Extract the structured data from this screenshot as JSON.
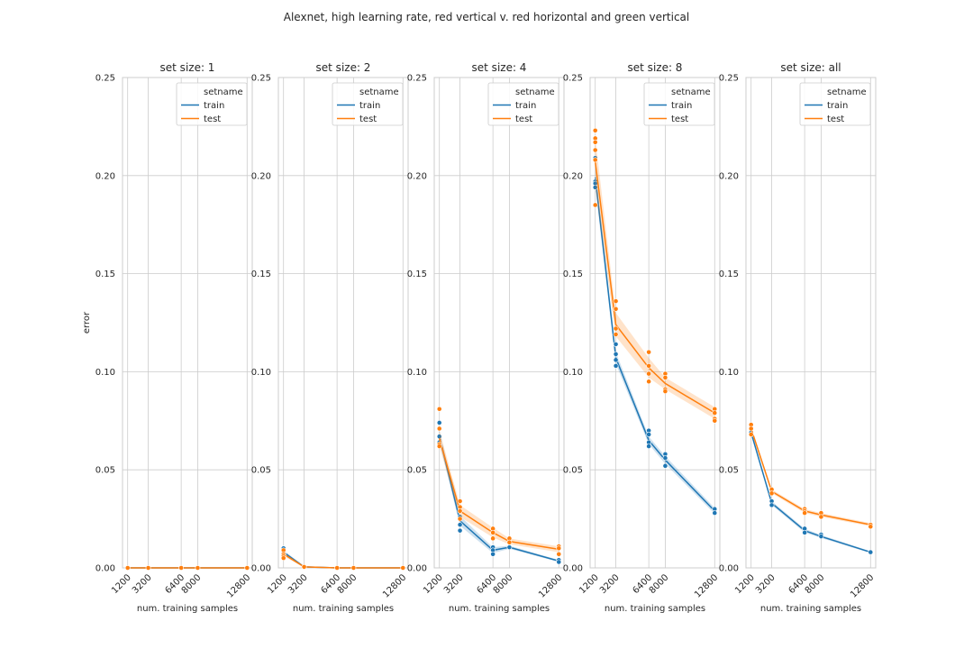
{
  "figure": {
    "title": "Alexnet, high learning rate, red vertical v. red horizontal and green vertical",
    "xlabel": "num. training samples",
    "ylabel": "error",
    "legend": {
      "title": "setname",
      "location": "upper right"
    },
    "colors": {
      "train": "#1f77b4",
      "test": "#ff7f0e",
      "grid": "#cccccc",
      "background": "#ffffff"
    }
  },
  "chart_data": [
    {
      "type": "line",
      "title": "set size: 1",
      "xlabel": "num. training samples",
      "ylabel": "error",
      "xticks": [
        "1200",
        "3200",
        "6400",
        "8000",
        "12800"
      ],
      "yticks": [
        "0.00",
        "0.05",
        "0.10",
        "0.15",
        "0.20",
        "0.25"
      ],
      "xlim": [
        700,
        13300
      ],
      "ylim": [
        0,
        0.25
      ],
      "grid": true,
      "series": [
        {
          "name": "train",
          "x": [
            1200,
            3200,
            6400,
            8000,
            12800
          ],
          "y": [
            0,
            0,
            0,
            0,
            0
          ],
          "band": [
            0,
            0,
            0,
            0,
            0
          ],
          "points": [
            [
              1200,
              0
            ],
            [
              3200,
              0
            ],
            [
              6400,
              0
            ],
            [
              8000,
              0
            ],
            [
              12800,
              0
            ]
          ]
        },
        {
          "name": "test",
          "x": [
            1200,
            3200,
            6400,
            8000,
            12800
          ],
          "y": [
            0,
            0,
            0,
            0,
            0
          ],
          "band": [
            0,
            0,
            0,
            0,
            0
          ],
          "points": [
            [
              1200,
              0
            ],
            [
              3200,
              0
            ],
            [
              6400,
              0
            ],
            [
              8000,
              0
            ],
            [
              12800,
              0
            ]
          ]
        }
      ]
    },
    {
      "type": "line",
      "title": "set size: 2",
      "xlabel": "num. training samples",
      "ylabel": "",
      "xticks": [
        "1200",
        "3200",
        "6400",
        "8000",
        "12800"
      ],
      "yticks": [
        "0.00",
        "0.05",
        "0.10",
        "0.15",
        "0.20",
        "0.25"
      ],
      "xlim": [
        700,
        13300
      ],
      "ylim": [
        0,
        0.25
      ],
      "grid": true,
      "series": [
        {
          "name": "train",
          "x": [
            1200,
            3200,
            6400,
            8000,
            12800
          ],
          "y": [
            0.008,
            0.0005,
            0,
            0,
            0
          ],
          "band": [
            0.001,
            0.0003,
            0,
            0,
            0
          ],
          "points": [
            [
              1200,
              0.01
            ],
            [
              1200,
              0.008
            ],
            [
              1200,
              0.007
            ],
            [
              3200,
              0.0005
            ],
            [
              6400,
              0
            ],
            [
              8000,
              0
            ],
            [
              12800,
              0
            ]
          ]
        },
        {
          "name": "test",
          "x": [
            1200,
            3200,
            6400,
            8000,
            12800
          ],
          "y": [
            0.007,
            0.0005,
            0,
            0,
            0
          ],
          "band": [
            0.001,
            0.0003,
            0,
            0,
            0
          ],
          "points": [
            [
              1200,
              0.009
            ],
            [
              1200,
              0.007
            ],
            [
              1200,
              0.006
            ],
            [
              1200,
              0.005
            ],
            [
              3200,
              0.0005
            ],
            [
              6400,
              0
            ],
            [
              8000,
              0
            ],
            [
              12800,
              0
            ]
          ]
        }
      ]
    },
    {
      "type": "line",
      "title": "set size: 4",
      "xlabel": "num. training samples",
      "ylabel": "",
      "xticks": [
        "1200",
        "3200",
        "6400",
        "8000",
        "12800"
      ],
      "yticks": [
        "0.00",
        "0.05",
        "0.10",
        "0.15",
        "0.20",
        "0.25"
      ],
      "xlim": [
        700,
        13300
      ],
      "ylim": [
        0,
        0.25
      ],
      "grid": true,
      "series": [
        {
          "name": "train",
          "x": [
            1200,
            3200,
            6400,
            8000,
            12800
          ],
          "y": [
            0.067,
            0.024,
            0.009,
            0.0105,
            0.0035
          ],
          "band": [
            0.003,
            0.0025,
            0.0015,
            0.0008,
            0.0005
          ],
          "points": [
            [
              1200,
              0.074
            ],
            [
              1200,
              0.067
            ],
            [
              1200,
              0.064
            ],
            [
              3200,
              0.026
            ],
            [
              3200,
              0.022
            ],
            [
              3200,
              0.019
            ],
            [
              6400,
              0.0105
            ],
            [
              6400,
              0.009
            ],
            [
              6400,
              0.007
            ],
            [
              8000,
              0.0105
            ],
            [
              12800,
              0.004
            ],
            [
              12800,
              0.003
            ]
          ]
        },
        {
          "name": "test",
          "x": [
            1200,
            3200,
            6400,
            8000,
            12800
          ],
          "y": [
            0.066,
            0.029,
            0.018,
            0.0135,
            0.0095
          ],
          "band": [
            0.004,
            0.003,
            0.0025,
            0.0015,
            0.0015
          ],
          "points": [
            [
              1200,
              0.081
            ],
            [
              1200,
              0.071
            ],
            [
              1200,
              0.063
            ],
            [
              1200,
              0.062
            ],
            [
              3200,
              0.034
            ],
            [
              3200,
              0.031
            ],
            [
              3200,
              0.029
            ],
            [
              3200,
              0.025
            ],
            [
              6400,
              0.02
            ],
            [
              6400,
              0.018
            ],
            [
              6400,
              0.015
            ],
            [
              8000,
              0.015
            ],
            [
              8000,
              0.013
            ],
            [
              12800,
              0.011
            ],
            [
              12800,
              0.01
            ],
            [
              12800,
              0.007
            ]
          ]
        }
      ]
    },
    {
      "type": "line",
      "title": "set size: 8",
      "xlabel": "num. training samples",
      "ylabel": "",
      "xticks": [
        "1200",
        "3200",
        "6400",
        "8000",
        "12800"
      ],
      "yticks": [
        "0.00",
        "0.05",
        "0.10",
        "0.15",
        "0.20",
        "0.25"
      ],
      "xlim": [
        700,
        13300
      ],
      "ylim": [
        0,
        0.25
      ],
      "grid": true,
      "series": [
        {
          "name": "train",
          "x": [
            1200,
            3200,
            6400,
            8000,
            12800
          ],
          "y": [
            0.199,
            0.107,
            0.065,
            0.055,
            0.029
          ],
          "band": [
            0.005,
            0.003,
            0.002,
            0.002,
            0.0015
          ],
          "points": [
            [
              1200,
              0.209
            ],
            [
              1200,
              0.197
            ],
            [
              1200,
              0.196
            ],
            [
              1200,
              0.194
            ],
            [
              3200,
              0.114
            ],
            [
              3200,
              0.109
            ],
            [
              3200,
              0.106
            ],
            [
              3200,
              0.103
            ],
            [
              6400,
              0.07
            ],
            [
              6400,
              0.068
            ],
            [
              6400,
              0.064
            ],
            [
              6400,
              0.062
            ],
            [
              8000,
              0.058
            ],
            [
              8000,
              0.056
            ],
            [
              8000,
              0.052
            ],
            [
              12800,
              0.03
            ],
            [
              12800,
              0.028
            ]
          ]
        },
        {
          "name": "test",
          "x": [
            1200,
            3200,
            6400,
            8000,
            12800
          ],
          "y": [
            0.207,
            0.124,
            0.102,
            0.094,
            0.079
          ],
          "band": [
            0.012,
            0.006,
            0.005,
            0.003,
            0.003
          ],
          "points": [
            [
              1200,
              0.223
            ],
            [
              1200,
              0.219
            ],
            [
              1200,
              0.217
            ],
            [
              1200,
              0.213
            ],
            [
              1200,
              0.208
            ],
            [
              1200,
              0.185
            ],
            [
              3200,
              0.136
            ],
            [
              3200,
              0.132
            ],
            [
              3200,
              0.122
            ],
            [
              3200,
              0.119
            ],
            [
              6400,
              0.11
            ],
            [
              6400,
              0.103
            ],
            [
              6400,
              0.099
            ],
            [
              6400,
              0.095
            ],
            [
              8000,
              0.099
            ],
            [
              8000,
              0.097
            ],
            [
              8000,
              0.091
            ],
            [
              8000,
              0.09
            ],
            [
              12800,
              0.081
            ],
            [
              12800,
              0.079
            ],
            [
              12800,
              0.076
            ],
            [
              12800,
              0.075
            ]
          ]
        }
      ]
    },
    {
      "type": "line",
      "title": "set size: all",
      "xlabel": "num. training samples",
      "ylabel": "",
      "xticks": [
        "1200",
        "3200",
        "6400",
        "8000",
        "12800"
      ],
      "yticks": [
        "0.00",
        "0.05",
        "0.10",
        "0.15",
        "0.20",
        "0.25"
      ],
      "xlim": [
        700,
        13300
      ],
      "ylim": [
        0,
        0.25
      ],
      "grid": true,
      "series": [
        {
          "name": "train",
          "x": [
            1200,
            3200,
            6400,
            8000,
            12800
          ],
          "y": [
            0.069,
            0.033,
            0.019,
            0.016,
            0.008
          ],
          "band": [
            0.0008,
            0.001,
            0.001,
            0.0008,
            0.0005
          ],
          "points": [
            [
              1200,
              0.069
            ],
            [
              3200,
              0.034
            ],
            [
              3200,
              0.032
            ],
            [
              6400,
              0.02
            ],
            [
              6400,
              0.018
            ],
            [
              8000,
              0.017
            ],
            [
              8000,
              0.016
            ],
            [
              12800,
              0.008
            ]
          ]
        },
        {
          "name": "test",
          "x": [
            1200,
            3200,
            6400,
            8000,
            12800
          ],
          "y": [
            0.071,
            0.039,
            0.029,
            0.027,
            0.022
          ],
          "band": [
            0.001,
            0.001,
            0.001,
            0.001,
            0.0008
          ],
          "points": [
            [
              1200,
              0.073
            ],
            [
              1200,
              0.071
            ],
            [
              1200,
              0.068
            ],
            [
              3200,
              0.04
            ],
            [
              3200,
              0.038
            ],
            [
              6400,
              0.03
            ],
            [
              6400,
              0.029
            ],
            [
              6400,
              0.028
            ],
            [
              8000,
              0.028
            ],
            [
              8000,
              0.026
            ],
            [
              12800,
              0.022
            ],
            [
              12800,
              0.021
            ]
          ]
        }
      ]
    }
  ]
}
